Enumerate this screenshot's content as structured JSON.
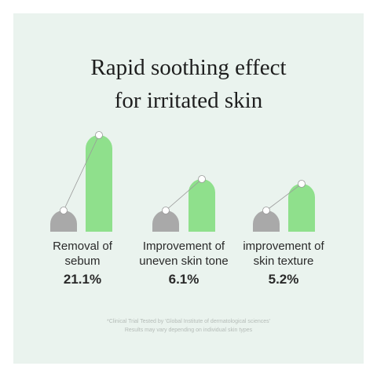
{
  "title": [
    "Rapid soothing effect",
    "for irritated skin"
  ],
  "items": [
    {
      "label": [
        "Removal of",
        "sebum"
      ],
      "value": "21.1%"
    },
    {
      "label": [
        "Improvement of",
        "uneven skin tone"
      ],
      "value": "6.1%"
    },
    {
      "label": [
        "improvement of",
        "skin texture"
      ],
      "value": "5.2%"
    }
  ],
  "footnote": [
    "*Clinical Trial Tested by 'Global Institute of dermatological sciences'",
    "Results may vary depending on individual skin types"
  ]
}
